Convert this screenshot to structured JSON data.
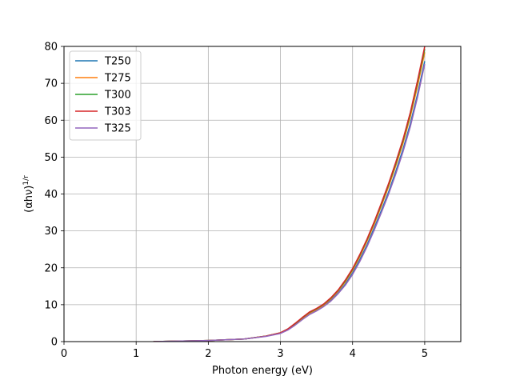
{
  "chart_data": {
    "type": "line",
    "xlabel": "Photon energy (eV)",
    "ylabel": "(αhν)^{1/r}",
    "xlim": [
      0,
      5.5
    ],
    "ylim": [
      0,
      80
    ],
    "xticks": [
      0,
      1,
      2,
      3,
      4,
      5
    ],
    "yticks": [
      0,
      10,
      20,
      30,
      40,
      50,
      60,
      70,
      80
    ],
    "grid": true,
    "legend_position": "top-left",
    "series": [
      {
        "name": "T250",
        "color": "#1f77b4",
        "x": [
          1.24,
          1.5,
          2.0,
          2.5,
          2.8,
          3.0,
          3.1,
          3.2,
          3.3,
          3.4,
          3.5,
          3.6,
          3.7,
          3.8,
          3.9,
          4.0,
          4.1,
          4.2,
          4.3,
          4.4,
          4.5,
          4.6,
          4.7,
          4.8,
          4.9,
          5.0
        ],
        "y": [
          0.0,
          0.1,
          0.3,
          0.7,
          1.5,
          2.3,
          3.2,
          4.5,
          6.0,
          7.4,
          8.4,
          9.6,
          11.2,
          13.2,
          15.6,
          18.6,
          22.2,
          26.2,
          30.8,
          35.6,
          40.6,
          46.2,
          52.2,
          59.0,
          67.0,
          76.0
        ]
      },
      {
        "name": "T275",
        "color": "#ff7f0e",
        "x": [
          1.24,
          1.5,
          2.0,
          2.5,
          2.8,
          3.0,
          3.1,
          3.2,
          3.3,
          3.4,
          3.5,
          3.6,
          3.7,
          3.8,
          3.9,
          4.0,
          4.1,
          4.2,
          4.3,
          4.4,
          4.5,
          4.6,
          4.7,
          4.8,
          4.9,
          5.0
        ],
        "y": [
          0.0,
          0.1,
          0.3,
          0.7,
          1.5,
          2.4,
          3.3,
          4.7,
          6.2,
          7.7,
          8.7,
          9.9,
          11.6,
          13.7,
          16.2,
          19.3,
          23.0,
          27.2,
          31.8,
          36.8,
          42.0,
          47.7,
          53.8,
          60.9,
          69.2,
          78.4
        ]
      },
      {
        "name": "T300",
        "color": "#2ca02c",
        "x": [
          1.24,
          1.5,
          2.0,
          2.5,
          2.8,
          3.0,
          3.1,
          3.2,
          3.3,
          3.4,
          3.5,
          3.6,
          3.7,
          3.8,
          3.9,
          4.0,
          4.1,
          4.2,
          4.3,
          4.4,
          4.5,
          4.6,
          4.7,
          4.8,
          4.9,
          5.0
        ],
        "y": [
          0.0,
          0.1,
          0.3,
          0.7,
          1.5,
          2.4,
          3.4,
          4.8,
          6.4,
          7.9,
          8.9,
          10.1,
          11.8,
          13.9,
          16.5,
          19.6,
          23.4,
          27.6,
          32.3,
          37.3,
          42.6,
          48.3,
          54.5,
          61.7,
          70.2,
          79.3
        ]
      },
      {
        "name": "T303",
        "color": "#d62728",
        "x": [
          1.24,
          1.5,
          2.0,
          2.5,
          2.8,
          3.0,
          3.1,
          3.2,
          3.3,
          3.4,
          3.5,
          3.6,
          3.7,
          3.8,
          3.9,
          4.0,
          4.1,
          4.2,
          4.3,
          4.4,
          4.5,
          4.6,
          4.7,
          4.8,
          4.9,
          5.0
        ],
        "y": [
          0.0,
          0.1,
          0.3,
          0.7,
          1.5,
          2.4,
          3.4,
          4.9,
          6.5,
          8.0,
          9.0,
          10.2,
          11.9,
          14.0,
          16.7,
          19.8,
          23.6,
          27.8,
          32.5,
          37.6,
          42.9,
          48.7,
          54.9,
          62.1,
          70.7,
          80.0
        ]
      },
      {
        "name": "T325",
        "color": "#9467bd",
        "x": [
          1.24,
          1.5,
          2.0,
          2.5,
          2.8,
          3.0,
          3.1,
          3.2,
          3.3,
          3.4,
          3.5,
          3.6,
          3.7,
          3.8,
          3.9,
          4.0,
          4.1,
          4.2,
          4.3,
          4.4,
          4.5,
          4.6,
          4.7,
          4.8,
          4.9,
          5.0
        ],
        "y": [
          0.0,
          0.1,
          0.3,
          0.7,
          1.4,
          2.2,
          3.1,
          4.4,
          5.9,
          7.3,
          8.3,
          9.5,
          11.0,
          13.0,
          15.3,
          18.2,
          21.7,
          25.7,
          30.2,
          35.0,
          40.0,
          45.5,
          51.5,
          58.2,
          66.2,
          75.2
        ]
      }
    ]
  }
}
